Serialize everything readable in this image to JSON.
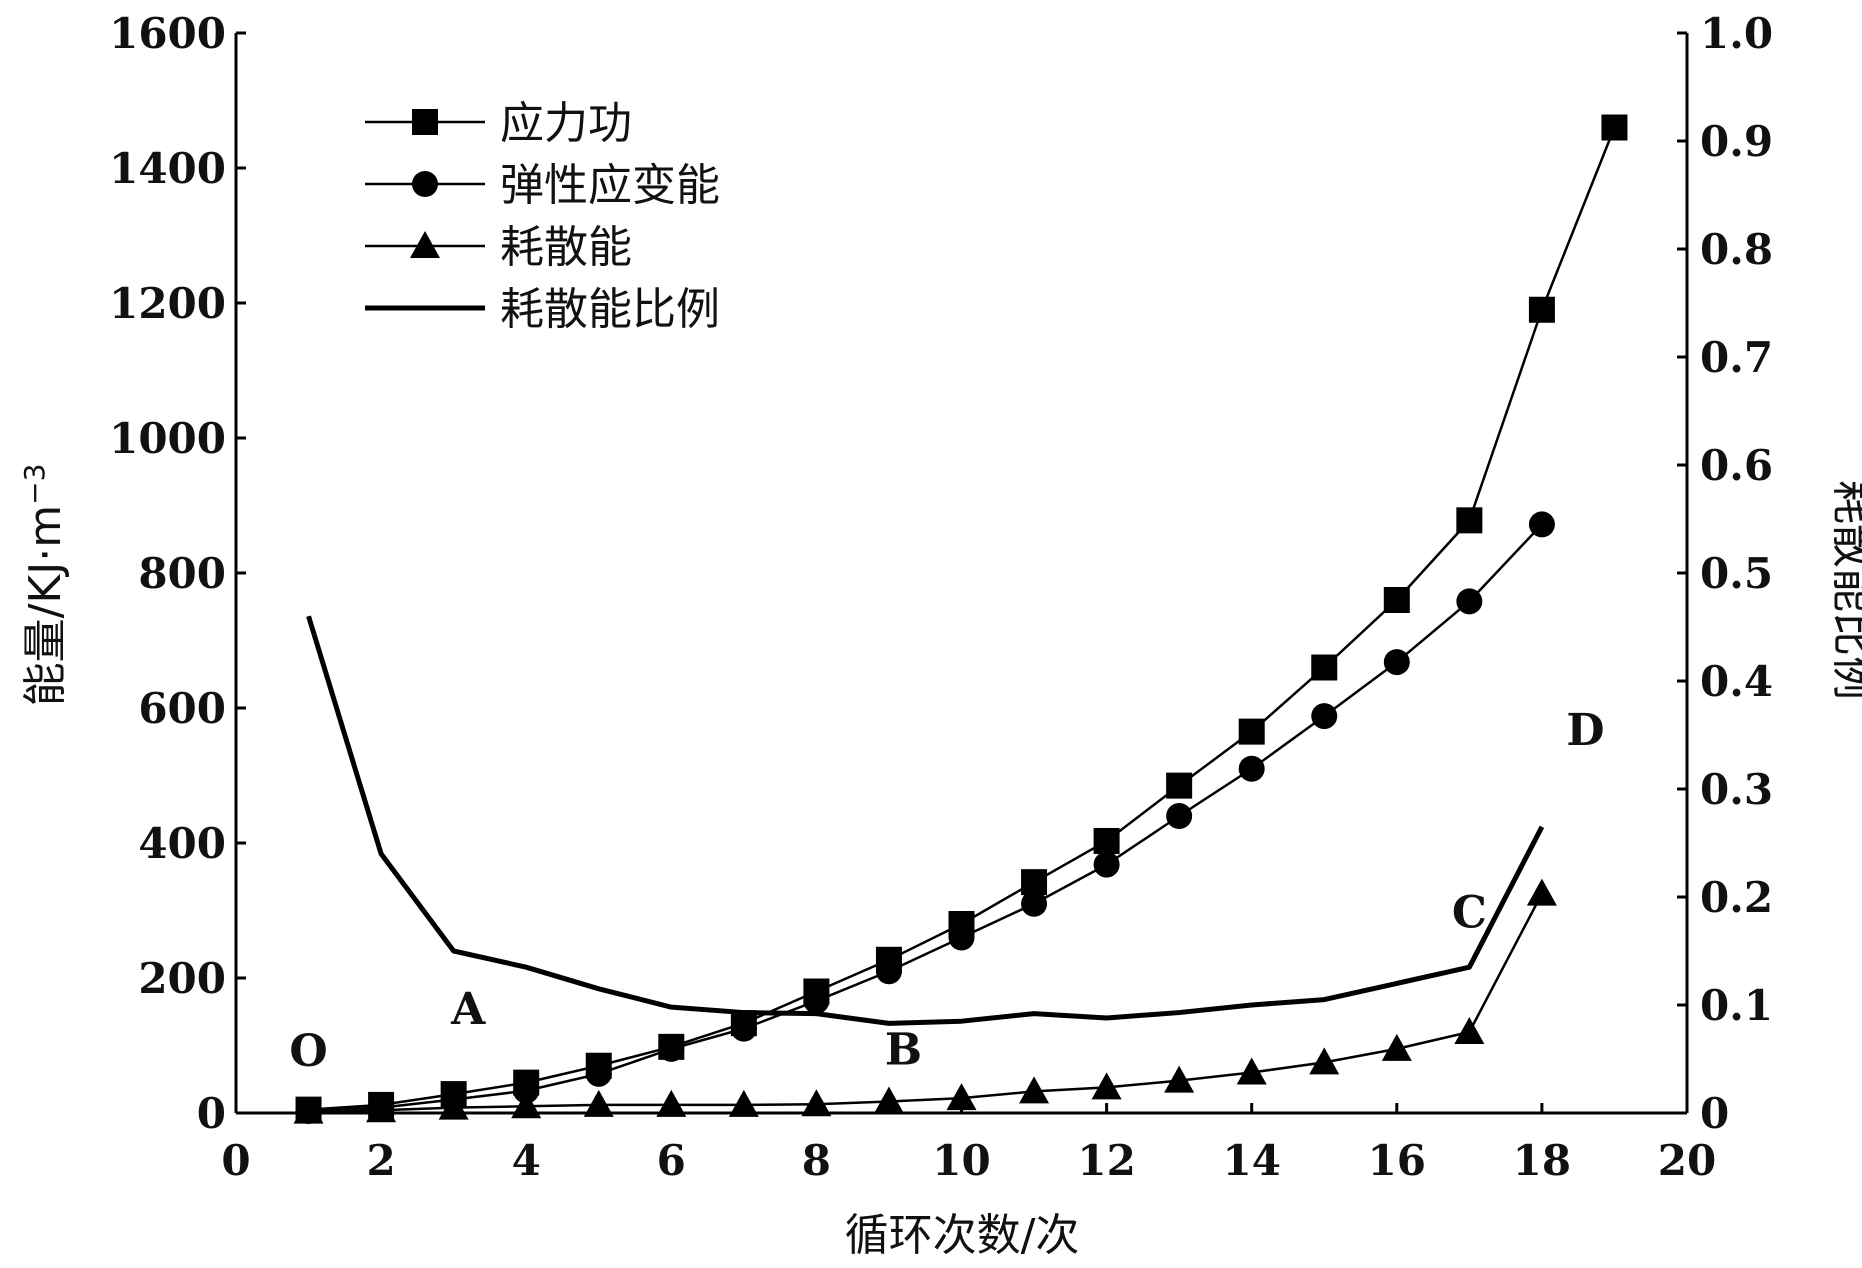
{
  "chart_data": {
    "type": "line",
    "xlabel": "循环次数/次",
    "ylabel_left": "能量/KJ·m",
    "ylabel_left_sup": "−3",
    "ylabel_right": "耗散能比例",
    "xlim": [
      0,
      20
    ],
    "ylim_left": [
      0,
      1600
    ],
    "ylim_right": [
      0,
      1.0
    ],
    "x_ticks": [
      0,
      2,
      4,
      6,
      8,
      10,
      12,
      14,
      16,
      18,
      20
    ],
    "y_left_ticks": [
      0,
      200,
      400,
      600,
      800,
      1000,
      1200,
      1400,
      1600
    ],
    "y_right_ticks": [
      "0",
      "0.1",
      "0.2",
      "0.3",
      "0.4",
      "0.5",
      "0.6",
      "0.7",
      "0.8",
      "0.9",
      "1.0"
    ],
    "grid": false,
    "legend_position": "top-left",
    "series": [
      {
        "name": "应力功",
        "marker": "square",
        "axis": "left",
        "x": [
          1,
          2,
          3,
          4,
          5,
          6,
          7,
          8,
          9,
          10,
          11,
          12,
          13,
          14,
          15,
          16,
          17,
          18,
          19
        ],
        "y": [
          5,
          12,
          28,
          45,
          70,
          98,
          133,
          180,
          227,
          280,
          342,
          403,
          485,
          565,
          660,
          760,
          878,
          1190,
          1460
        ]
      },
      {
        "name": "弹性应变能",
        "marker": "circle",
        "axis": "left",
        "x": [
          1,
          2,
          3,
          4,
          5,
          6,
          7,
          8,
          9,
          10,
          11,
          12,
          13,
          14,
          15,
          16,
          17,
          18
        ],
        "y": [
          3,
          8,
          20,
          33,
          58,
          95,
          125,
          166,
          210,
          260,
          310,
          368,
          440,
          510,
          588,
          668,
          758,
          872
        ]
      },
      {
        "name": "耗散能",
        "marker": "triangle",
        "axis": "left",
        "x": [
          1,
          2,
          3,
          4,
          5,
          6,
          7,
          8,
          9,
          10,
          11,
          12,
          13,
          14,
          15,
          16,
          17,
          18
        ],
        "y": [
          2,
          4,
          8,
          10,
          12,
          12,
          12,
          13,
          17,
          22,
          32,
          38,
          48,
          60,
          75,
          95,
          120,
          325
        ]
      },
      {
        "name": "耗散能比例",
        "marker": "none",
        "axis": "right",
        "x": [
          1,
          2,
          3,
          4,
          5,
          6,
          7,
          8,
          9,
          10,
          11,
          12,
          13,
          14,
          15,
          16,
          17,
          18
        ],
        "y": [
          0.46,
          0.24,
          0.15,
          0.135,
          0.115,
          0.098,
          0.093,
          0.092,
          0.083,
          0.085,
          0.092,
          0.088,
          0.093,
          0.1,
          0.105,
          0.12,
          0.135,
          0.265
        ]
      }
    ],
    "annotations": [
      {
        "text": "O",
        "x": 1,
        "y_left": 70
      },
      {
        "text": "A",
        "x": 3.2,
        "y_left": 132
      },
      {
        "text": "B",
        "x": 9.2,
        "y_left": 72
      },
      {
        "text": "C",
        "x": 17,
        "y_left": 275
      },
      {
        "text": "D",
        "x": 18.6,
        "y_left": 545
      }
    ]
  }
}
